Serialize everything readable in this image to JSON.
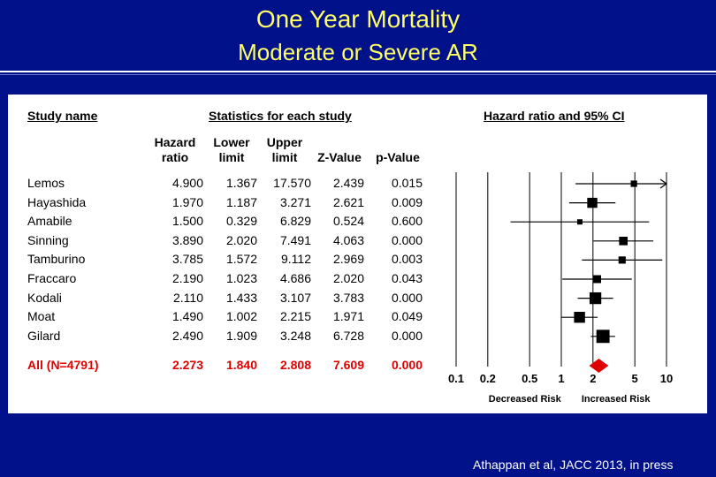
{
  "slide": {
    "title": "One Year Mortality",
    "subtitle": "Moderate or Severe AR",
    "citation": "Athappan et al, JACC 2013, in press"
  },
  "table": {
    "study_name_header": "Study name",
    "stats_header": "Statistics for each study",
    "plot_header": "Hazard ratio and 95% CI",
    "columns": [
      "Hazard ratio",
      "Lower limit",
      "Upper limit",
      "Z-Value",
      "p-Value"
    ]
  },
  "chart_data": {
    "type": "forest",
    "title": "Hazard ratio and 95% CI",
    "scale": "log",
    "xlim": [
      0.1,
      10
    ],
    "ticks": [
      0.1,
      0.2,
      0.5,
      1,
      2,
      5,
      10
    ],
    "tick_labels": [
      "0.1",
      "0.2",
      "0.5",
      "1",
      "2",
      "5",
      "10"
    ],
    "xlabel_left": "Decreased Risk",
    "xlabel_right": "Increased Risk",
    "rows": [
      {
        "study": "Lemos",
        "hr": "4.900",
        "lower": "1.367",
        "upper": "17.570",
        "z": "2.439",
        "p": "0.015",
        "weight": 1
      },
      {
        "study": "Hayashida",
        "hr": "1.970",
        "lower": "1.187",
        "upper": "3.271",
        "z": "2.621",
        "p": "0.009",
        "weight": 4
      },
      {
        "study": "Amabile",
        "hr": "1.500",
        "lower": "0.329",
        "upper": "6.829",
        "z": "0.524",
        "p": "0.600",
        "weight": 0.5
      },
      {
        "study": "Sinning",
        "hr": "3.890",
        "lower": "2.020",
        "upper": "7.491",
        "z": "4.063",
        "p": "0.000",
        "weight": 2.5
      },
      {
        "study": "Tamburino",
        "hr": "3.785",
        "lower": "1.572",
        "upper": "9.112",
        "z": "2.969",
        "p": "0.003",
        "weight": 1.5
      },
      {
        "study": "Fraccaro",
        "hr": "2.190",
        "lower": "1.023",
        "upper": "4.686",
        "z": "2.020",
        "p": "0.043",
        "weight": 2
      },
      {
        "study": "Kodali",
        "hr": "2.110",
        "lower": "1.433",
        "upper": "3.107",
        "z": "3.783",
        "p": "0.000",
        "weight": 6
      },
      {
        "study": "Moat",
        "hr": "1.490",
        "lower": "1.002",
        "upper": "2.215",
        "z": "1.971",
        "p": "0.049",
        "weight": 5
      },
      {
        "study": "Gilard",
        "hr": "2.490",
        "lower": "1.909",
        "upper": "3.248",
        "z": "6.728",
        "p": "0.000",
        "weight": 8
      }
    ],
    "summary": {
      "study": "All (N=4791)",
      "hr": "2.273",
      "lower": "1.840",
      "upper": "2.808",
      "z": "7.609",
      "p": "0.000"
    },
    "colors": {
      "marker": "#000000",
      "summary": "#e00000"
    }
  }
}
